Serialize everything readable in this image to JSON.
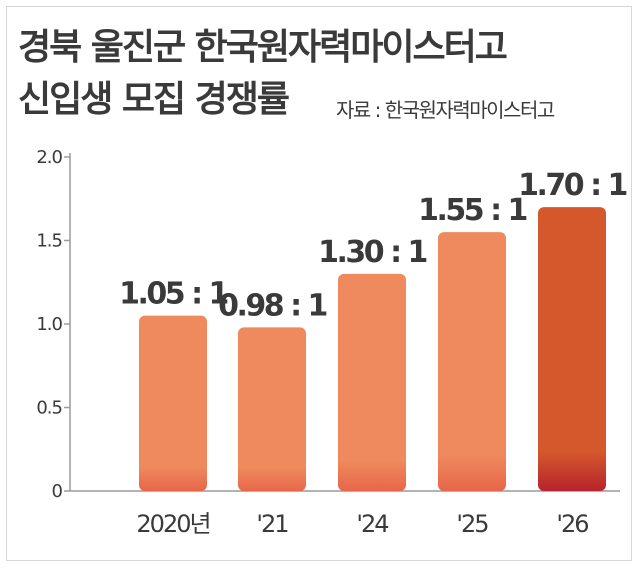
{
  "header": {
    "title_line1": "경북 울진군 한국원자력마이스터고",
    "title_line2": "신입생 모집 경쟁률",
    "source": "자료 : 한국원자력마이스터고"
  },
  "colors": {
    "bar_regular": "#ee8a5d",
    "bar_highlight": "#d4582b",
    "bar_base_regular": "#e8664a",
    "bar_base_highlight": "#b8232d",
    "text": "#3a3a3a",
    "grid": "#cfcfcf"
  },
  "chart_data": {
    "type": "bar",
    "title": "경북 울진군 한국원자력마이스터고 신입생 모집 경쟁률",
    "categories": [
      "2020년",
      "'21",
      "'24",
      "'25",
      "'26"
    ],
    "values": [
      1.05,
      0.98,
      1.3,
      1.55,
      1.7
    ],
    "data_labels": [
      "1.05 : 1",
      "0.98 : 1",
      "1.30 : 1",
      "1.55 : 1",
      "1.70 : 1"
    ],
    "highlight_index": 4,
    "y_ticks": [
      "0",
      "0.5",
      "1.0",
      "1.5",
      "2.0"
    ],
    "ylim": [
      0,
      2.0
    ],
    "xlabel": "",
    "ylabel": "",
    "grid": false
  }
}
